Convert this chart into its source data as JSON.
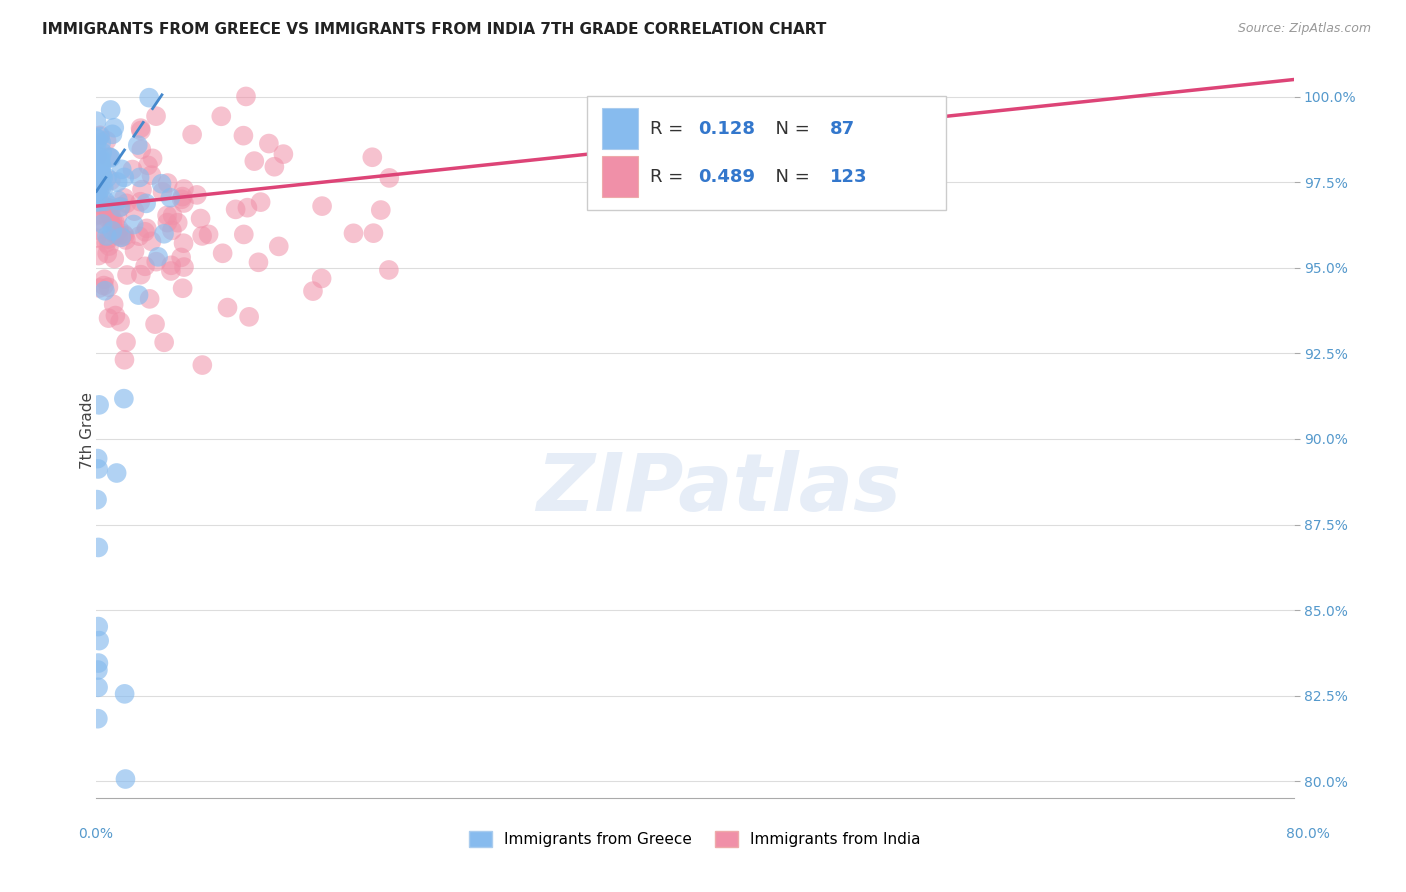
{
  "title": "IMMIGRANTS FROM GREECE VS IMMIGRANTS FROM INDIA 7TH GRADE CORRELATION CHART",
  "source": "Source: ZipAtlas.com",
  "legend_label1": "Immigrants from Greece",
  "legend_label2": "Immigrants from India",
  "r1": 0.128,
  "n1": 87,
  "r2": 0.489,
  "n2": 123,
  "color_greece": "#87bbee",
  "color_india": "#f090a8",
  "trend_color_greece": "#4488cc",
  "trend_color_india": "#dd4477",
  "xmin": 0.0,
  "xmax": 80.0,
  "ymin": 79.5,
  "ymax": 101.0,
  "ytick_vals": [
    100.0,
    97.5,
    95.0,
    92.5,
    90.0,
    87.5,
    85.0,
    82.5,
    80.0
  ],
  "background_color": "#ffffff",
  "grid_color": "#dddddd",
  "ylabel": "7th Grade"
}
